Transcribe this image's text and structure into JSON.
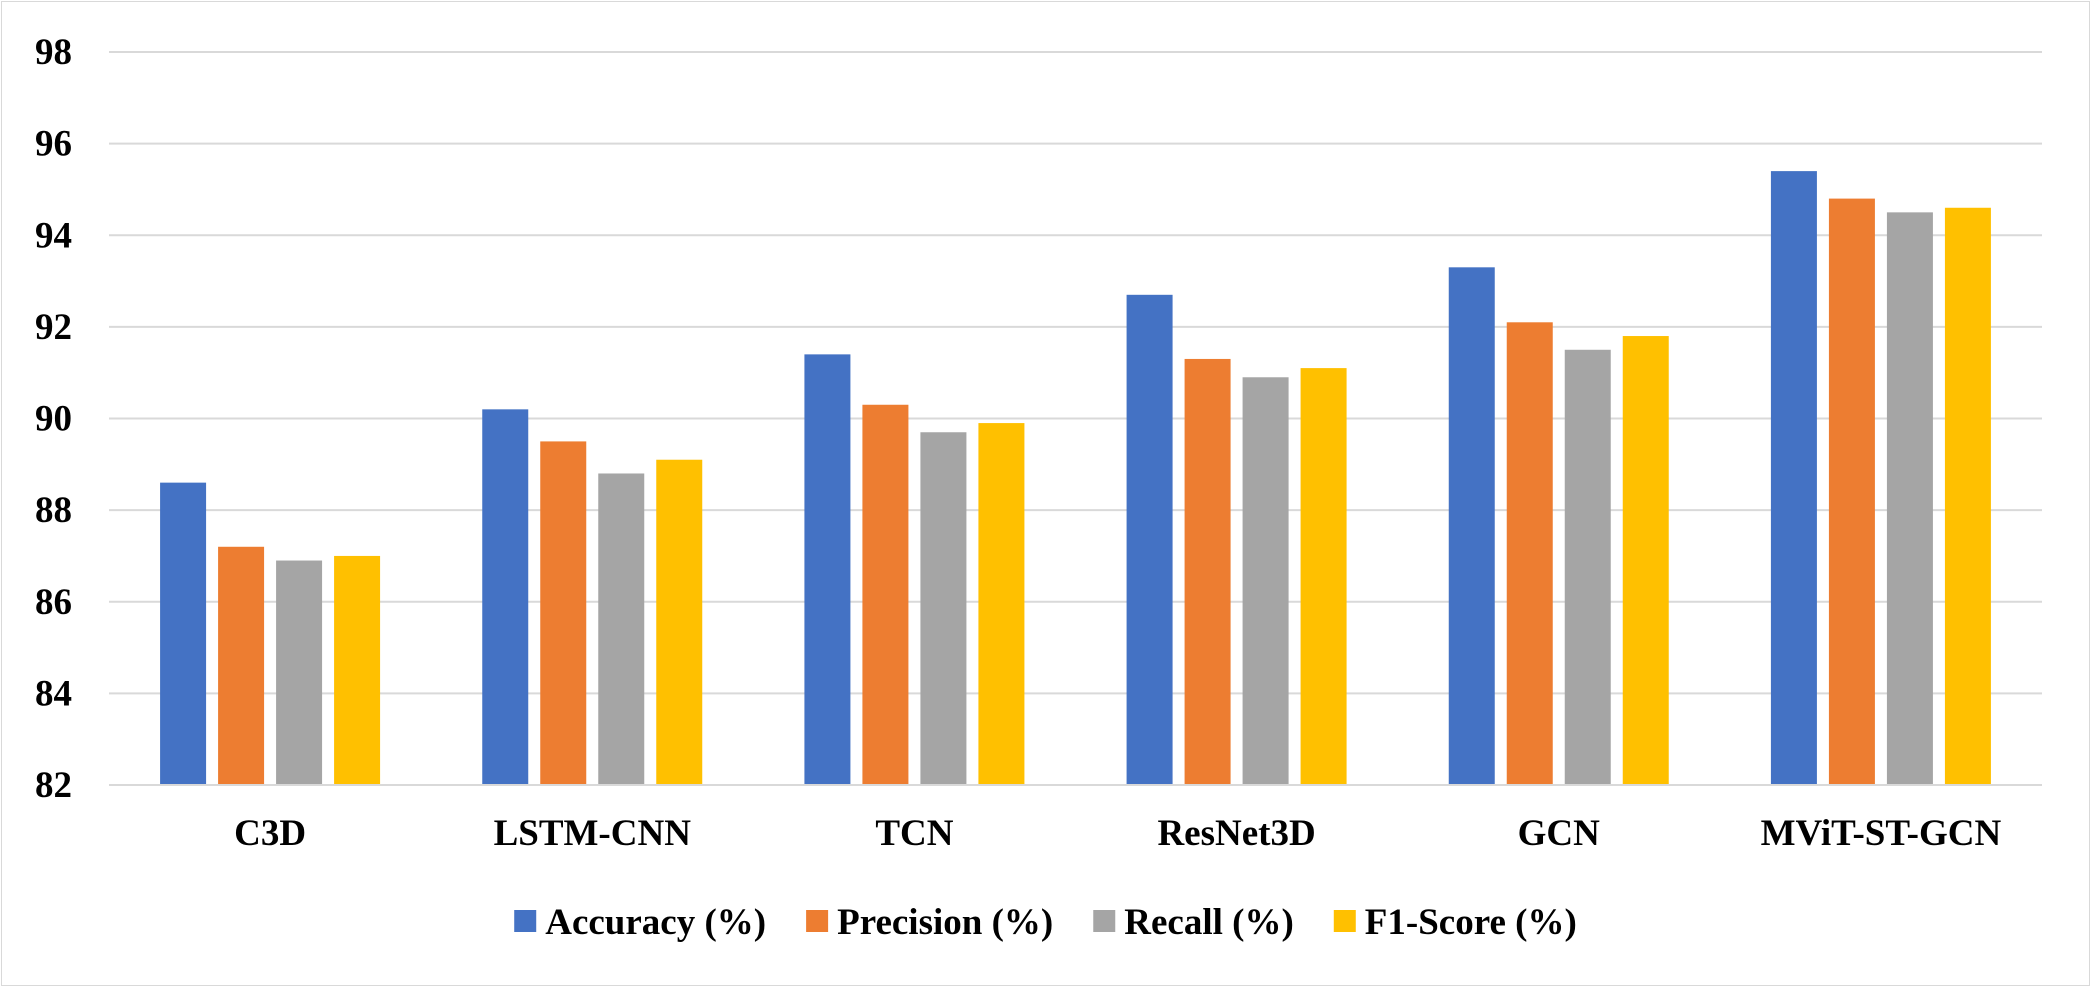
{
  "chart_data": {
    "type": "bar",
    "title": "",
    "xlabel": "",
    "ylabel": "",
    "ylim": [
      82,
      98
    ],
    "yticks": [
      82,
      84,
      86,
      88,
      90,
      92,
      94,
      96,
      98
    ],
    "grid": true,
    "legend_position": "bottom",
    "categories": [
      "C3D",
      "LSTM-CNN",
      "TCN",
      "ResNet3D",
      "GCN",
      "MViT-ST-GCN"
    ],
    "series": [
      {
        "name": "Accuracy (%)",
        "color": "#4472C4",
        "values": [
          88.6,
          90.2,
          91.4,
          92.7,
          93.3,
          95.4
        ]
      },
      {
        "name": "Precision (%)",
        "color": "#ED7D31",
        "values": [
          87.2,
          89.5,
          90.3,
          91.3,
          92.1,
          94.8
        ]
      },
      {
        "name": "Recall (%)",
        "color": "#A5A5A5",
        "values": [
          86.9,
          88.8,
          89.7,
          90.9,
          91.5,
          94.5
        ]
      },
      {
        "name": "F1-Score (%)",
        "color": "#FFC000",
        "values": [
          87.0,
          89.1,
          89.9,
          91.1,
          91.8,
          94.6
        ]
      }
    ]
  }
}
